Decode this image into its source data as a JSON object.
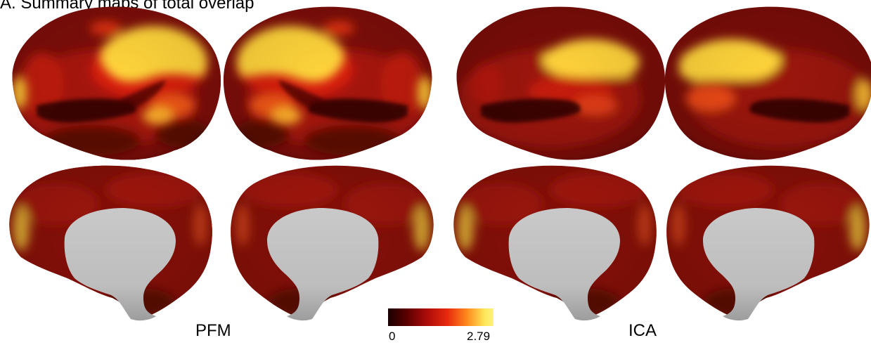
{
  "figure": {
    "panel_title": "A. Summary maps of total overlap",
    "methods": {
      "left": "PFM",
      "right": "ICA"
    },
    "colorbar": {
      "min_label": "0",
      "max_label": "2.79",
      "min_value": 0,
      "max_value": 2.79,
      "colors": [
        "#1a0000",
        "#5c0000",
        "#b00d0a",
        "#e8290e",
        "#ff8a1e",
        "#ffe85a",
        "#fff27a"
      ]
    },
    "views": [
      {
        "method": "PFM",
        "hemisphere": "left",
        "view": "lateral"
      },
      {
        "method": "PFM",
        "hemisphere": "right",
        "view": "lateral"
      },
      {
        "method": "ICA",
        "hemisphere": "left",
        "view": "lateral"
      },
      {
        "method": "ICA",
        "hemisphere": "right",
        "view": "lateral"
      },
      {
        "method": "PFM",
        "hemisphere": "left",
        "view": "medial"
      },
      {
        "method": "PFM",
        "hemisphere": "right",
        "view": "medial"
      },
      {
        "method": "ICA",
        "hemisphere": "left",
        "view": "medial"
      },
      {
        "method": "ICA",
        "hemisphere": "right",
        "view": "medial"
      }
    ]
  }
}
